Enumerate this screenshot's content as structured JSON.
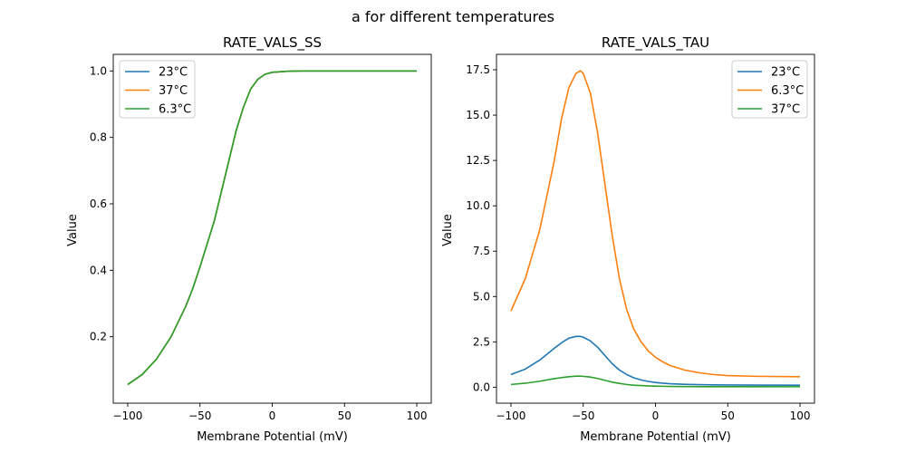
{
  "figure": {
    "suptitle": "a for different temperatures"
  },
  "chart_data": [
    {
      "type": "line",
      "title": "RATE_VALS_SS",
      "xlabel": "Membrane Potential (mV)",
      "ylabel": "Value",
      "xlim": [
        -110,
        110
      ],
      "ylim": [
        0.0,
        1.05
      ],
      "xticks": [
        -100,
        -50,
        0,
        50,
        100
      ],
      "yticks": [
        0.2,
        0.4,
        0.6,
        0.8,
        1.0
      ],
      "ytick_format": 1,
      "legend": "upper left",
      "grid": false,
      "x": [
        -100,
        -90,
        -80,
        -70,
        -60,
        -55,
        -50,
        -45,
        -40,
        -35,
        -30,
        -25,
        -20,
        -15,
        -10,
        -5,
        0,
        10,
        20,
        50,
        100
      ],
      "series": [
        {
          "name": "23°C",
          "color": "#1f77b4",
          "values": [
            0.056,
            0.086,
            0.133,
            0.2,
            0.29,
            0.345,
            0.41,
            0.48,
            0.55,
            0.64,
            0.73,
            0.82,
            0.89,
            0.945,
            0.975,
            0.99,
            0.996,
            0.999,
            1.0,
            1.0,
            1.0
          ]
        },
        {
          "name": "37°C",
          "color": "#ff7f0e",
          "values": [
            0.056,
            0.086,
            0.133,
            0.2,
            0.29,
            0.345,
            0.41,
            0.48,
            0.55,
            0.64,
            0.73,
            0.82,
            0.89,
            0.945,
            0.975,
            0.99,
            0.996,
            0.999,
            1.0,
            1.0,
            1.0
          ]
        },
        {
          "name": "6.3°C",
          "color": "#2ca02c",
          "values": [
            0.056,
            0.086,
            0.133,
            0.2,
            0.29,
            0.345,
            0.41,
            0.48,
            0.55,
            0.64,
            0.73,
            0.82,
            0.89,
            0.945,
            0.975,
            0.99,
            0.996,
            0.999,
            1.0,
            1.0,
            1.0
          ]
        }
      ]
    },
    {
      "type": "line",
      "title": "RATE_VALS_TAU",
      "xlabel": "Membrane Potential (mV)",
      "ylabel": "Value",
      "xlim": [
        -110,
        110
      ],
      "ylim": [
        -0.88,
        18.35
      ],
      "xticks": [
        -100,
        -50,
        0,
        50,
        100
      ],
      "yticks": [
        0.0,
        2.5,
        5.0,
        7.5,
        10.0,
        12.5,
        15.0,
        17.5
      ],
      "ytick_format": 1,
      "legend": "upper right",
      "grid": false,
      "x": [
        -100,
        -90,
        -80,
        -70,
        -65,
        -60,
        -55,
        -52,
        -50,
        -45,
        -40,
        -35,
        -30,
        -25,
        -20,
        -15,
        -10,
        -5,
        0,
        5,
        10,
        20,
        30,
        40,
        50,
        70,
        100
      ],
      "series": [
        {
          "name": "23°C",
          "color": "#1f77b4",
          "values": [
            0.7,
            1.0,
            1.5,
            2.15,
            2.45,
            2.7,
            2.8,
            2.8,
            2.76,
            2.55,
            2.2,
            1.75,
            1.3,
            0.95,
            0.7,
            0.52,
            0.4,
            0.32,
            0.26,
            0.22,
            0.19,
            0.16,
            0.14,
            0.13,
            0.12,
            0.115,
            0.11
          ]
        },
        {
          "name": "6.3°C",
          "color": "#ff7f0e",
          "values": [
            4.2,
            6.0,
            8.7,
            12.5,
            14.8,
            16.5,
            17.3,
            17.45,
            17.3,
            16.2,
            14.0,
            11.2,
            8.4,
            6.0,
            4.3,
            3.2,
            2.5,
            2.0,
            1.65,
            1.4,
            1.2,
            0.95,
            0.8,
            0.7,
            0.64,
            0.6,
            0.58
          ]
        },
        {
          "name": "37°C",
          "color": "#2ca02c",
          "values": [
            0.15,
            0.22,
            0.33,
            0.47,
            0.53,
            0.58,
            0.61,
            0.61,
            0.6,
            0.56,
            0.48,
            0.38,
            0.28,
            0.21,
            0.15,
            0.11,
            0.09,
            0.07,
            0.06,
            0.05,
            0.04,
            0.035,
            0.03,
            0.028,
            0.027,
            0.026,
            0.025
          ]
        }
      ]
    }
  ]
}
